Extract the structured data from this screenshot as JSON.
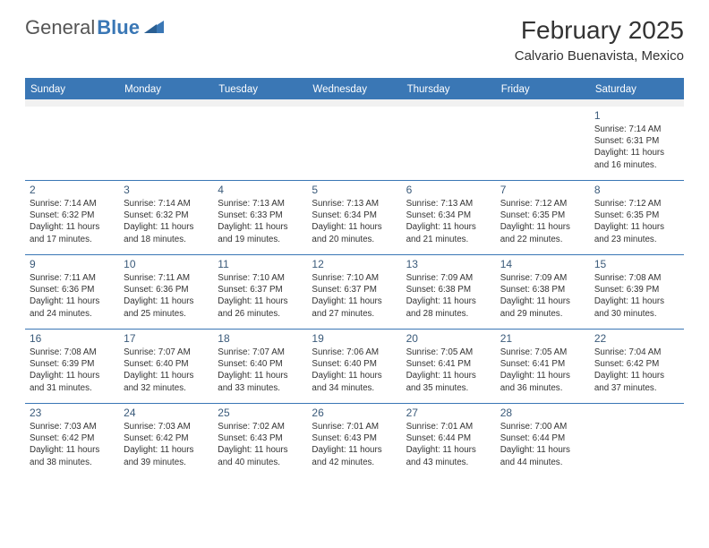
{
  "logo": {
    "word1": "General",
    "word2": "Blue"
  },
  "title": "February 2025",
  "location": "Calvario Buenavista, Mexico",
  "colors": {
    "accent": "#3a77b5",
    "text": "#333333",
    "logo_gray": "#555555",
    "spacer_bg": "#f1f1f1",
    "background": "#ffffff"
  },
  "weekdays": [
    "Sunday",
    "Monday",
    "Tuesday",
    "Wednesday",
    "Thursday",
    "Friday",
    "Saturday"
  ],
  "weeks": [
    [
      null,
      null,
      null,
      null,
      null,
      null,
      {
        "n": "1",
        "sunrise": "Sunrise: 7:14 AM",
        "sunset": "Sunset: 6:31 PM",
        "d1": "Daylight: 11 hours",
        "d2": "and 16 minutes."
      }
    ],
    [
      {
        "n": "2",
        "sunrise": "Sunrise: 7:14 AM",
        "sunset": "Sunset: 6:32 PM",
        "d1": "Daylight: 11 hours",
        "d2": "and 17 minutes."
      },
      {
        "n": "3",
        "sunrise": "Sunrise: 7:14 AM",
        "sunset": "Sunset: 6:32 PM",
        "d1": "Daylight: 11 hours",
        "d2": "and 18 minutes."
      },
      {
        "n": "4",
        "sunrise": "Sunrise: 7:13 AM",
        "sunset": "Sunset: 6:33 PM",
        "d1": "Daylight: 11 hours",
        "d2": "and 19 minutes."
      },
      {
        "n": "5",
        "sunrise": "Sunrise: 7:13 AM",
        "sunset": "Sunset: 6:34 PM",
        "d1": "Daylight: 11 hours",
        "d2": "and 20 minutes."
      },
      {
        "n": "6",
        "sunrise": "Sunrise: 7:13 AM",
        "sunset": "Sunset: 6:34 PM",
        "d1": "Daylight: 11 hours",
        "d2": "and 21 minutes."
      },
      {
        "n": "7",
        "sunrise": "Sunrise: 7:12 AM",
        "sunset": "Sunset: 6:35 PM",
        "d1": "Daylight: 11 hours",
        "d2": "and 22 minutes."
      },
      {
        "n": "8",
        "sunrise": "Sunrise: 7:12 AM",
        "sunset": "Sunset: 6:35 PM",
        "d1": "Daylight: 11 hours",
        "d2": "and 23 minutes."
      }
    ],
    [
      {
        "n": "9",
        "sunrise": "Sunrise: 7:11 AM",
        "sunset": "Sunset: 6:36 PM",
        "d1": "Daylight: 11 hours",
        "d2": "and 24 minutes."
      },
      {
        "n": "10",
        "sunrise": "Sunrise: 7:11 AM",
        "sunset": "Sunset: 6:36 PM",
        "d1": "Daylight: 11 hours",
        "d2": "and 25 minutes."
      },
      {
        "n": "11",
        "sunrise": "Sunrise: 7:10 AM",
        "sunset": "Sunset: 6:37 PM",
        "d1": "Daylight: 11 hours",
        "d2": "and 26 minutes."
      },
      {
        "n": "12",
        "sunrise": "Sunrise: 7:10 AM",
        "sunset": "Sunset: 6:37 PM",
        "d1": "Daylight: 11 hours",
        "d2": "and 27 minutes."
      },
      {
        "n": "13",
        "sunrise": "Sunrise: 7:09 AM",
        "sunset": "Sunset: 6:38 PM",
        "d1": "Daylight: 11 hours",
        "d2": "and 28 minutes."
      },
      {
        "n": "14",
        "sunrise": "Sunrise: 7:09 AM",
        "sunset": "Sunset: 6:38 PM",
        "d1": "Daylight: 11 hours",
        "d2": "and 29 minutes."
      },
      {
        "n": "15",
        "sunrise": "Sunrise: 7:08 AM",
        "sunset": "Sunset: 6:39 PM",
        "d1": "Daylight: 11 hours",
        "d2": "and 30 minutes."
      }
    ],
    [
      {
        "n": "16",
        "sunrise": "Sunrise: 7:08 AM",
        "sunset": "Sunset: 6:39 PM",
        "d1": "Daylight: 11 hours",
        "d2": "and 31 minutes."
      },
      {
        "n": "17",
        "sunrise": "Sunrise: 7:07 AM",
        "sunset": "Sunset: 6:40 PM",
        "d1": "Daylight: 11 hours",
        "d2": "and 32 minutes."
      },
      {
        "n": "18",
        "sunrise": "Sunrise: 7:07 AM",
        "sunset": "Sunset: 6:40 PM",
        "d1": "Daylight: 11 hours",
        "d2": "and 33 minutes."
      },
      {
        "n": "19",
        "sunrise": "Sunrise: 7:06 AM",
        "sunset": "Sunset: 6:40 PM",
        "d1": "Daylight: 11 hours",
        "d2": "and 34 minutes."
      },
      {
        "n": "20",
        "sunrise": "Sunrise: 7:05 AM",
        "sunset": "Sunset: 6:41 PM",
        "d1": "Daylight: 11 hours",
        "d2": "and 35 minutes."
      },
      {
        "n": "21",
        "sunrise": "Sunrise: 7:05 AM",
        "sunset": "Sunset: 6:41 PM",
        "d1": "Daylight: 11 hours",
        "d2": "and 36 minutes."
      },
      {
        "n": "22",
        "sunrise": "Sunrise: 7:04 AM",
        "sunset": "Sunset: 6:42 PM",
        "d1": "Daylight: 11 hours",
        "d2": "and 37 minutes."
      }
    ],
    [
      {
        "n": "23",
        "sunrise": "Sunrise: 7:03 AM",
        "sunset": "Sunset: 6:42 PM",
        "d1": "Daylight: 11 hours",
        "d2": "and 38 minutes."
      },
      {
        "n": "24",
        "sunrise": "Sunrise: 7:03 AM",
        "sunset": "Sunset: 6:42 PM",
        "d1": "Daylight: 11 hours",
        "d2": "and 39 minutes."
      },
      {
        "n": "25",
        "sunrise": "Sunrise: 7:02 AM",
        "sunset": "Sunset: 6:43 PM",
        "d1": "Daylight: 11 hours",
        "d2": "and 40 minutes."
      },
      {
        "n": "26",
        "sunrise": "Sunrise: 7:01 AM",
        "sunset": "Sunset: 6:43 PM",
        "d1": "Daylight: 11 hours",
        "d2": "and 42 minutes."
      },
      {
        "n": "27",
        "sunrise": "Sunrise: 7:01 AM",
        "sunset": "Sunset: 6:44 PM",
        "d1": "Daylight: 11 hours",
        "d2": "and 43 minutes."
      },
      {
        "n": "28",
        "sunrise": "Sunrise: 7:00 AM",
        "sunset": "Sunset: 6:44 PM",
        "d1": "Daylight: 11 hours",
        "d2": "and 44 minutes."
      },
      null
    ]
  ]
}
